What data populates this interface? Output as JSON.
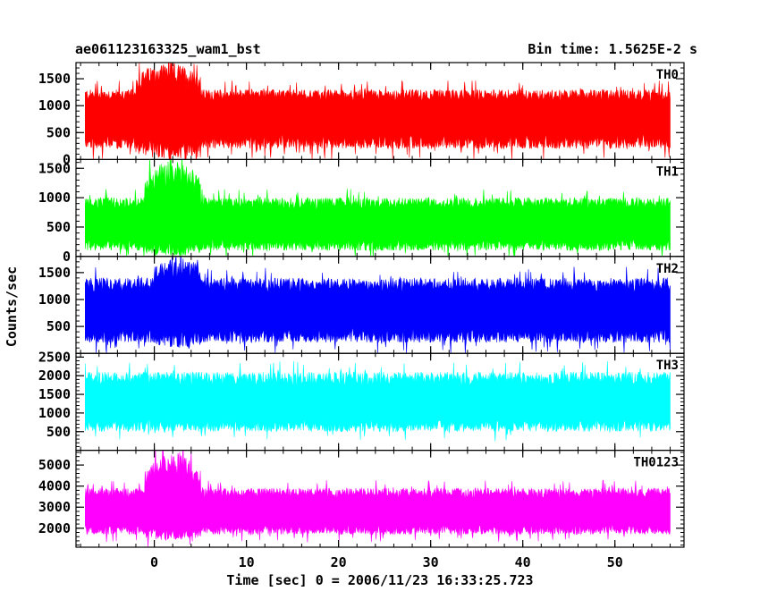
{
  "header": {
    "left_title": "ae061123163325_wam1_bst",
    "right_title": "Bin time: 1.5625E-2 s"
  },
  "chart_data": {
    "type": "line",
    "xlabel": "Time [sec] 0 = 2006/11/23 16:33:25.723",
    "ylabel": "Counts/sec",
    "xlim": [
      -8.5,
      57.5
    ],
    "x_ticks": [
      0,
      10,
      20,
      30,
      40,
      50
    ],
    "x_tick_labels": [
      "0",
      "10",
      "20",
      "30",
      "40",
      "50"
    ],
    "x_range_data": [
      -7.5,
      56
    ],
    "bin_time_s": 0.015625,
    "grid": false,
    "panels": [
      {
        "name": "TH0",
        "color": "#ff0000",
        "ylim": [
          0,
          1800
        ],
        "y_ticks": [
          0,
          500,
          1000,
          1500
        ],
        "y_tick_labels": [
          "0",
          "500",
          "1000",
          "1500"
        ],
        "baseline_mean": 800,
        "typical_max": 1300,
        "typical_min": 200,
        "burst": {
          "start": -2,
          "end": 5,
          "peak_max": 1800,
          "peak_min": 0
        }
      },
      {
        "name": "TH1",
        "color": "#00ff00",
        "ylim": [
          0,
          1650
        ],
        "y_ticks": [
          0,
          500,
          1000,
          1500
        ],
        "y_tick_labels": [
          "0",
          "500",
          "1000",
          "1500"
        ],
        "baseline_mean": 550,
        "typical_max": 1000,
        "typical_min": 100,
        "burst": {
          "start": -1,
          "end": 5,
          "peak_max": 1650,
          "peak_min": 0
        }
      },
      {
        "name": "TH2",
        "color": "#0000ff",
        "ylim": [
          0,
          1800
        ],
        "y_ticks": [
          500,
          1000,
          1500
        ],
        "y_tick_labels": [
          "500",
          "1000",
          "1500"
        ],
        "baseline_mean": 800,
        "typical_max": 1400,
        "typical_min": 200,
        "burst": {
          "start": 0,
          "end": 5,
          "peak_max": 1800,
          "peak_min": 100
        }
      },
      {
        "name": "TH3",
        "color": "#00ffff",
        "ylim": [
          0,
          2600
        ],
        "y_ticks": [
          500,
          1000,
          1500,
          2000,
          2500
        ],
        "y_tick_labels": [
          "500",
          "1000",
          "1500",
          "2000",
          "2500"
        ],
        "baseline_mean": 1250,
        "typical_max": 2100,
        "typical_min": 500,
        "burst": null
      },
      {
        "name": "TH0123",
        "color": "#ff00ff",
        "ylim": [
          1100,
          5700
        ],
        "y_ticks": [
          2000,
          3000,
          4000,
          5000
        ],
        "y_tick_labels": [
          "2000",
          "3000",
          "4000",
          "5000"
        ],
        "baseline_mean": 2800,
        "typical_max": 3900,
        "typical_min": 1700,
        "burst": {
          "start": -1,
          "end": 5,
          "peak_max": 5600,
          "peak_min": 1400
        }
      }
    ]
  }
}
